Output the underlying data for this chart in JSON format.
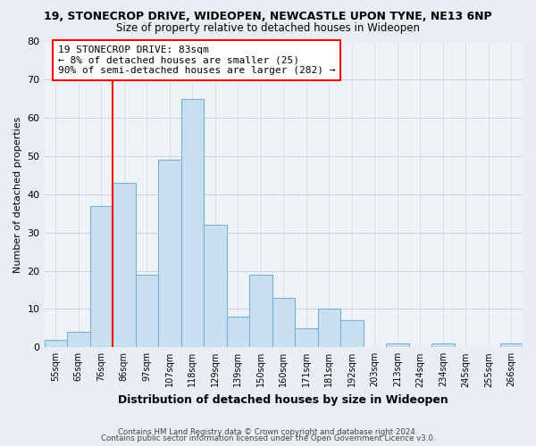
{
  "title1": "19, STONECROP DRIVE, WIDEOPEN, NEWCASTLE UPON TYNE, NE13 6NP",
  "title2": "Size of property relative to detached houses in Wideopen",
  "xlabel": "Distribution of detached houses by size in Wideopen",
  "ylabel": "Number of detached properties",
  "bin_labels": [
    "55sqm",
    "65sqm",
    "76sqm",
    "86sqm",
    "97sqm",
    "107sqm",
    "118sqm",
    "129sqm",
    "139sqm",
    "150sqm",
    "160sqm",
    "171sqm",
    "181sqm",
    "192sqm",
    "203sqm",
    "213sqm",
    "224sqm",
    "234sqm",
    "245sqm",
    "255sqm",
    "266sqm"
  ],
  "bar_heights": [
    2,
    4,
    37,
    43,
    19,
    49,
    65,
    32,
    8,
    19,
    13,
    5,
    10,
    7,
    0,
    1,
    0,
    1,
    0,
    0,
    1
  ],
  "bar_color": "#c8dff0",
  "bar_edge_color": "#7bafd4",
  "vline_color": "red",
  "vline_x": 2.5,
  "annotation_text": "19 STONECROP DRIVE: 83sqm\n← 8% of detached houses are smaller (25)\n90% of semi-detached houses are larger (282) →",
  "annotation_box_edge": "red",
  "ylim": [
    0,
    80
  ],
  "yticks": [
    0,
    10,
    20,
    30,
    40,
    50,
    60,
    70,
    80
  ],
  "footer_line1": "Contains HM Land Registry data © Crown copyright and database right 2024.",
  "footer_line2": "Contains public sector information licensed under the Open Government Licence v3.0.",
  "bg_color": "#e8eef4",
  "plot_bg_color": "#eef3f8",
  "grid_color": "#c8d4e0"
}
